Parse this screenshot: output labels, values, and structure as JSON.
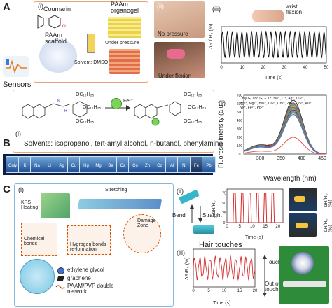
{
  "panelA": {
    "label": "A",
    "sub_i": "(i)",
    "coumarin": "Coumarin",
    "paam_scaffold": "PAAm\nscaffold",
    "paam_organogel": "PAAm\norganogel",
    "under_pressure": "Under pressure",
    "solvent": "Solvent: DMSO",
    "sub_ii": "(ii)",
    "no_pressure": "No pressure",
    "under_flexion": "Under flexion",
    "sub_iii": "(iii)",
    "wrist_flexion": "wrist\nflexion",
    "chart_ylabel": "ΔR / R₀ (%)",
    "chart_xlabel": "Time (s)",
    "x_ticks": [
      "0",
      "10",
      "20",
      "30",
      "40",
      "50"
    ]
  },
  "sensors_label": "Sensors",
  "panelB": {
    "label": "B",
    "sub_i": "(i)",
    "chain1": "OC₁₂H₂₅",
    "chain2": "OC₁₂H₂₅",
    "chain3": "OC₁₂H₂₅",
    "fe_label": "Fe³⁺",
    "solvents": "Solvents: isopropanol, tert-amyl alcohol, n-butanol, phenylamine",
    "vial_labels": [
      "Only",
      "K",
      "Na",
      "Li",
      "Ag",
      "Cu",
      "Hg",
      "Mg",
      "Ba",
      "Ca",
      "Co",
      "Zn",
      "Cd",
      "Al",
      "Ni",
      "Fe",
      "Pb"
    ],
    "sub_ii": "(ii)",
    "legend_text": "Only G₁ and G₁ + K⁺, Na⁺, Li⁺, Ag⁺, Cu²⁺, Hg²⁺, Mg²⁺, Ba²⁺, Ca²⁺, Co²⁺, Zn²⁺, Cd²⁺, Al³⁺, Ni²⁺, Fe²⁺, Pb²⁺",
    "fe3_label": "Fe³⁺",
    "chart_ylabel": "Fluoresc. intensity (a.u.)",
    "chart_xlabel": "Wavelength (nm)",
    "y_ticks": [
      "0",
      "100",
      "200",
      "300",
      "400",
      "500",
      "600",
      "700"
    ],
    "x_ticks": [
      "300",
      "350",
      "400",
      "450"
    ]
  },
  "panelC": {
    "label": "C",
    "sub_i": "(i)",
    "kps_heating": "KPS\nHeating",
    "stretching": "Stretching",
    "chemical_bonds": "Chemical\nbonds",
    "hydrogen_bonds": "Hydrogen bonds\nre-formation",
    "damage_zone": "Damage\nZone",
    "legend_eg": "ethylene glycol",
    "legend_graphene": "graphene",
    "legend_network": "PAAM/PVP double\nnetwork",
    "sub_ii": "(ii)",
    "bend": "Bend",
    "straight": "Straight",
    "chart_ii_ylabel": "ΔR/R₀",
    "chart_ii_xlabel": "Time (s)",
    "chart_ii_xticks": [
      "0",
      "5",
      "10",
      "15",
      "20"
    ],
    "chart_ii_yticks": [
      "0",
      "25",
      "50",
      "75"
    ],
    "sub_iii": "(iii)",
    "hair_touches": "Hair touches",
    "chart_iii_ylabel": "ΔR/R₀ (%)",
    "chart_iii_xlabel": "Time (s)",
    "chart_iii_xticks": [
      "0",
      "5",
      "10",
      "15",
      "20"
    ],
    "touch": "Touch",
    "out_of_touch": "Out of\ntouch",
    "photo_ylabel": "ΔR/R₀ (%)"
  },
  "chart_data": [
    {
      "type": "line",
      "xlabel": "Time (s)",
      "ylabel": "ΔR / R₀ (%)",
      "xlim": [
        0,
        50
      ],
      "series": [
        {
          "x_period": 2.3,
          "cycles": 22,
          "amplitude_rel": 1.0
        }
      ]
    },
    {
      "type": "line",
      "xlabel": "Wavelength (nm)",
      "ylabel": "Fluoresc. intensity (a.u.)",
      "xlim": [
        260,
        460
      ],
      "ylim": [
        0,
        700
      ],
      "peak_wavelength": 380,
      "series": [
        {
          "color": "#222222",
          "peak": 640
        },
        {
          "color": "#c0392b",
          "peak": 610
        },
        {
          "color": "#2e86c1",
          "peak": 600
        },
        {
          "color": "#27ae60",
          "peak": 590
        },
        {
          "color": "#8e44ad",
          "peak": 580
        },
        {
          "color": "#f39c12",
          "peak": 570
        },
        {
          "color": "#16a085",
          "peak": 560
        },
        {
          "color": "#d35400",
          "peak": 555
        },
        {
          "color": "#7f8c8d",
          "peak": 545
        },
        {
          "color": "#1abc9c",
          "peak": 535
        },
        {
          "color": "#2c3e50",
          "peak": 525
        },
        {
          "color": "#e84393",
          "peak": 515
        },
        {
          "color": "#6c5ce7",
          "peak": 505
        },
        {
          "color": "#00b894",
          "peak": 495
        },
        {
          "color": "#b8860b",
          "peak": 485
        },
        {
          "color": "#4169e1",
          "peak": 470
        },
        {
          "color": "#e74c3c",
          "peak": 200,
          "name": "Fe³⁺"
        }
      ]
    },
    {
      "type": "line",
      "xlabel": "Time (s)",
      "ylabel": "ΔR/R₀",
      "xlim": [
        0,
        22
      ],
      "ylim": [
        0,
        85
      ],
      "series": [
        {
          "pulses_at": [
            3,
            6,
            9,
            12,
            15,
            18
          ],
          "height": 75
        }
      ]
    },
    {
      "type": "line",
      "xlabel": "Time (s)",
      "ylabel": "ΔR/R₀ (%)",
      "xlim": [
        0,
        20
      ],
      "series": [
        {
          "cycles": 12
        }
      ]
    }
  ]
}
